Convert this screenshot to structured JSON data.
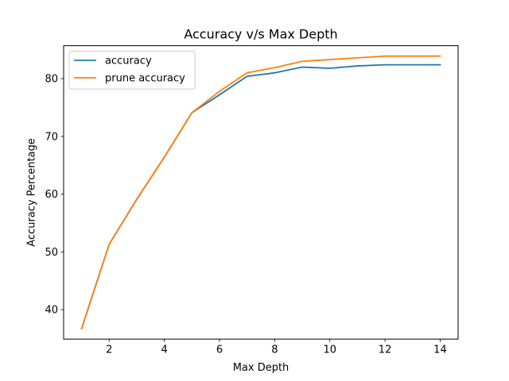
{
  "chart_data": {
    "type": "line",
    "title": "Accuracy v/s Max Depth",
    "xlabel": "Max Depth",
    "ylabel": "Accuracy Percentage",
    "xlim": [
      0.35,
      14.65
    ],
    "ylim": [
      34.9,
      85.7
    ],
    "xticks": [
      2,
      4,
      6,
      8,
      10,
      12,
      14
    ],
    "yticks": [
      40,
      50,
      60,
      70,
      80
    ],
    "grid": false,
    "legend_position": "upper-left",
    "x": [
      1,
      2,
      3,
      4,
      5,
      6,
      7,
      8,
      9,
      10,
      11,
      12,
      13,
      14
    ],
    "series": [
      {
        "name": "accuracy",
        "color": "#1f77b4",
        "values": [
          36.7,
          51.3,
          59.1,
          66.4,
          74.1,
          77.2,
          80.4,
          81.0,
          82.0,
          81.8,
          82.2,
          82.4,
          82.4,
          82.4
        ]
      },
      {
        "name": "prune accuracy",
        "color": "#ff7f0e",
        "values": [
          36.7,
          51.3,
          59.1,
          66.4,
          74.1,
          77.8,
          81.0,
          81.9,
          83.0,
          83.3,
          83.6,
          83.9,
          83.9,
          83.9
        ]
      }
    ]
  }
}
